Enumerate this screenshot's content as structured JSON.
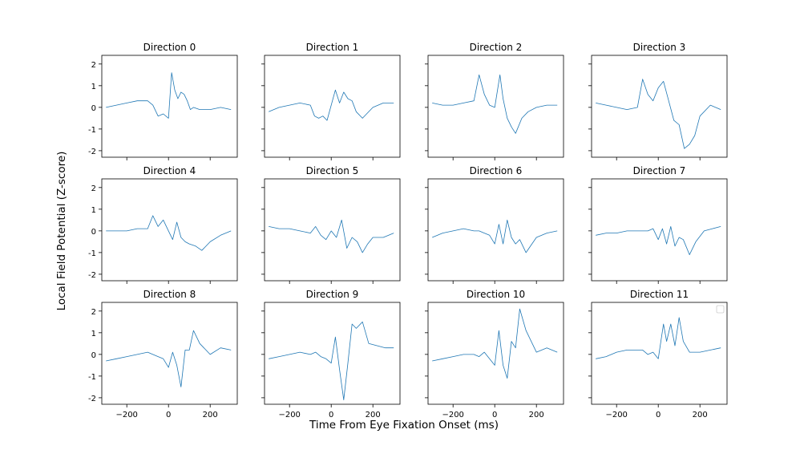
{
  "figure": {
    "xlabel": "Time From Eye Fixation Onset (ms)",
    "ylabel": "Local Field Potential (Z-score)"
  },
  "chart_data": {
    "type": "line",
    "layout": "3x4 grid of subplots with shared x and y axes",
    "series_color": "#1f77b4",
    "xlim": [
      -320,
      330
    ],
    "ylim": [
      -2.3,
      2.4
    ],
    "xticks": [
      -200,
      0,
      200
    ],
    "yticks": [
      -2,
      -1,
      0,
      1,
      2
    ],
    "grid": false,
    "legend": "empty legend box, top-right of last panel",
    "panels": [
      {
        "title": "Direction 0",
        "x": [
          -300,
          -250,
          -200,
          -150,
          -100,
          -75,
          -50,
          -25,
          0,
          15,
          30,
          45,
          60,
          75,
          90,
          105,
          120,
          150,
          200,
          250,
          300
        ],
        "y": [
          0.0,
          0.1,
          0.2,
          0.3,
          0.3,
          0.1,
          -0.4,
          -0.3,
          -0.5,
          1.6,
          0.8,
          0.4,
          0.7,
          0.6,
          0.3,
          -0.1,
          0.0,
          -0.1,
          -0.1,
          0.0,
          -0.1
        ]
      },
      {
        "title": "Direction 1",
        "x": [
          -300,
          -250,
          -200,
          -150,
          -100,
          -80,
          -60,
          -40,
          -20,
          0,
          20,
          40,
          60,
          80,
          100,
          120,
          150,
          200,
          250,
          300
        ],
        "y": [
          -0.2,
          0.0,
          0.1,
          0.2,
          0.1,
          -0.4,
          -0.5,
          -0.4,
          -0.6,
          0.1,
          0.8,
          0.2,
          0.7,
          0.4,
          0.3,
          -0.2,
          -0.5,
          0.0,
          0.2,
          0.2
        ]
      },
      {
        "title": "Direction 2",
        "x": [
          -300,
          -250,
          -200,
          -150,
          -100,
          -75,
          -50,
          -25,
          0,
          25,
          40,
          60,
          80,
          100,
          130,
          160,
          200,
          250,
          300
        ],
        "y": [
          0.2,
          0.1,
          0.1,
          0.2,
          0.3,
          1.5,
          0.6,
          0.1,
          0.0,
          1.5,
          0.4,
          -0.5,
          -0.9,
          -1.2,
          -0.5,
          -0.2,
          0.0,
          0.1,
          0.1
        ]
      },
      {
        "title": "Direction 3",
        "x": [
          -300,
          -250,
          -200,
          -150,
          -100,
          -75,
          -50,
          -25,
          0,
          25,
          50,
          75,
          100,
          125,
          150,
          175,
          200,
          250,
          300
        ],
        "y": [
          0.2,
          0.1,
          0.0,
          -0.1,
          0.0,
          1.3,
          0.6,
          0.3,
          0.9,
          1.2,
          0.3,
          -0.6,
          -0.8,
          -1.9,
          -1.7,
          -1.3,
          -0.4,
          0.1,
          -0.1
        ]
      },
      {
        "title": "Direction 4",
        "x": [
          -300,
          -250,
          -200,
          -150,
          -100,
          -75,
          -50,
          -25,
          0,
          20,
          40,
          60,
          80,
          100,
          130,
          160,
          200,
          250,
          300
        ],
        "y": [
          0.0,
          0.0,
          0.0,
          0.1,
          0.1,
          0.7,
          0.2,
          0.5,
          0.0,
          -0.4,
          0.4,
          -0.3,
          -0.5,
          -0.6,
          -0.7,
          -0.9,
          -0.5,
          -0.2,
          0.0
        ]
      },
      {
        "title": "Direction 5",
        "x": [
          -300,
          -250,
          -200,
          -150,
          -100,
          -75,
          -50,
          -25,
          0,
          25,
          50,
          75,
          100,
          125,
          150,
          175,
          200,
          250,
          300
        ],
        "y": [
          0.2,
          0.1,
          0.1,
          0.0,
          -0.1,
          0.2,
          -0.2,
          -0.4,
          0.0,
          -0.3,
          0.5,
          -0.8,
          -0.3,
          -0.5,
          -1.0,
          -0.6,
          -0.3,
          -0.3,
          -0.1
        ]
      },
      {
        "title": "Direction 6",
        "x": [
          -300,
          -250,
          -200,
          -150,
          -100,
          -75,
          -50,
          -25,
          0,
          20,
          40,
          60,
          80,
          100,
          120,
          150,
          200,
          250,
          300
        ],
        "y": [
          -0.3,
          -0.1,
          0.0,
          0.1,
          0.0,
          0.0,
          -0.1,
          -0.2,
          -0.6,
          0.3,
          -0.6,
          0.5,
          -0.3,
          -0.6,
          -0.4,
          -1.0,
          -0.3,
          -0.1,
          0.0
        ]
      },
      {
        "title": "Direction 7",
        "x": [
          -300,
          -250,
          -200,
          -150,
          -100,
          -75,
          -50,
          -25,
          0,
          20,
          40,
          60,
          80,
          100,
          120,
          150,
          180,
          220,
          260,
          300
        ],
        "y": [
          -0.2,
          -0.1,
          -0.1,
          0.0,
          0.0,
          0.0,
          0.0,
          0.1,
          -0.4,
          0.1,
          -0.6,
          0.2,
          -0.7,
          -0.3,
          -0.4,
          -1.1,
          -0.5,
          0.0,
          0.1,
          0.2
        ]
      },
      {
        "title": "Direction 8",
        "x": [
          -300,
          -250,
          -200,
          -150,
          -100,
          -75,
          -50,
          -25,
          0,
          20,
          40,
          60,
          80,
          100,
          120,
          150,
          200,
          250,
          300
        ],
        "y": [
          -0.3,
          -0.2,
          -0.1,
          0.0,
          0.1,
          0.0,
          -0.1,
          -0.2,
          -0.6,
          0.1,
          -0.5,
          -1.5,
          0.2,
          0.2,
          1.1,
          0.5,
          0.0,
          0.3,
          0.2
        ]
      },
      {
        "title": "Direction 9",
        "x": [
          -300,
          -250,
          -200,
          -150,
          -100,
          -75,
          -50,
          -25,
          0,
          20,
          40,
          60,
          80,
          100,
          120,
          150,
          180,
          220,
          260,
          300
        ],
        "y": [
          -0.2,
          -0.1,
          0.0,
          0.1,
          0.0,
          0.1,
          -0.1,
          -0.2,
          -0.4,
          0.8,
          -0.7,
          -2.1,
          -0.4,
          1.4,
          1.2,
          1.5,
          0.5,
          0.4,
          0.3,
          0.3
        ]
      },
      {
        "title": "Direction 10",
        "x": [
          -300,
          -250,
          -200,
          -150,
          -100,
          -75,
          -50,
          -25,
          0,
          20,
          40,
          60,
          80,
          100,
          120,
          150,
          200,
          250,
          300
        ],
        "y": [
          -0.3,
          -0.2,
          -0.1,
          0.0,
          0.0,
          -0.1,
          0.1,
          -0.2,
          -0.5,
          1.1,
          -0.5,
          -1.1,
          0.6,
          0.3,
          2.1,
          1.1,
          0.1,
          0.3,
          0.1
        ]
      },
      {
        "title": "Direction 11",
        "x": [
          -300,
          -250,
          -200,
          -150,
          -100,
          -75,
          -50,
          -25,
          0,
          25,
          40,
          60,
          80,
          100,
          120,
          150,
          200,
          250,
          300
        ],
        "y": [
          -0.2,
          -0.1,
          0.1,
          0.2,
          0.2,
          0.2,
          0.0,
          0.1,
          -0.2,
          1.4,
          0.6,
          1.4,
          0.4,
          1.7,
          0.6,
          0.1,
          0.1,
          0.2,
          0.3
        ]
      }
    ]
  }
}
